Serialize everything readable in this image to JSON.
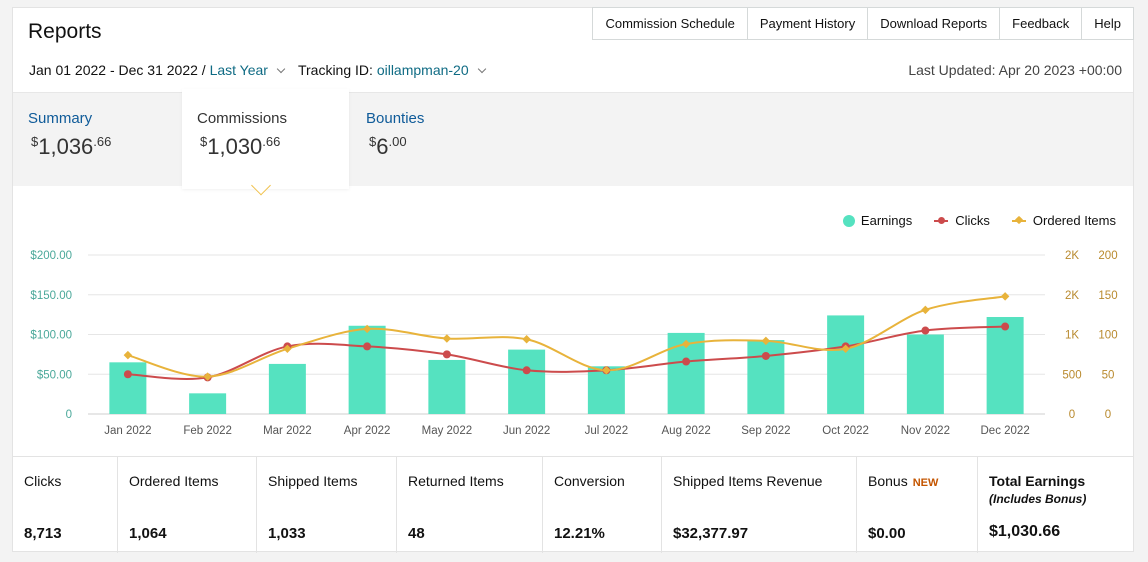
{
  "header": {
    "title": "Reports",
    "nav": [
      "Commission Schedule",
      "Payment History",
      "Download Reports",
      "Feedback",
      "Help"
    ]
  },
  "filters": {
    "date_range": "Jan 01 2022 - Dec 31 2022 /",
    "period": "Last Year",
    "tracking_label": "Tracking ID:",
    "tracking_id": "oillampman-20",
    "last_updated": "Last Updated: Apr 20 2023 +00:00"
  },
  "tabs": {
    "summary": {
      "label": "Summary",
      "cur": "$",
      "main": "1,036",
      "cents": ".66"
    },
    "commissions": {
      "label": "Commissions",
      "cur": "$",
      "main": "1,030",
      "cents": ".66"
    },
    "bounties": {
      "label": "Bounties",
      "cur": "$",
      "main": "6",
      "cents": ".00"
    }
  },
  "legend": {
    "earnings": "Earnings",
    "clicks": "Clicks",
    "ordered": "Ordered Items"
  },
  "colors": {
    "earnings": "#55e2c0",
    "clicks": "#cc4b4c",
    "ordered": "#e8b33b",
    "left_axis": "#4aa89a",
    "right_axis": "#b98a2e",
    "accent_link": "#0f6b84"
  },
  "chart_data": {
    "type": "bar",
    "categories": [
      "Jan 2022",
      "Feb 2022",
      "Mar 2022",
      "Apr 2022",
      "May 2022",
      "Jun 2022",
      "Jul 2022",
      "Aug 2022",
      "Sep 2022",
      "Oct 2022",
      "Nov 2022",
      "Dec 2022"
    ],
    "series": [
      {
        "name": "Earnings",
        "type": "bar",
        "axis": "left",
        "values": [
          65,
          26,
          63,
          111,
          68,
          81,
          60,
          102,
          93,
          124,
          100,
          122
        ]
      },
      {
        "name": "Clicks",
        "type": "line",
        "axis": "right_clicks",
        "values": [
          500,
          460,
          850,
          850,
          750,
          550,
          550,
          660,
          730,
          850,
          1050,
          1100
        ]
      },
      {
        "name": "Ordered Items",
        "type": "line",
        "axis": "right_items",
        "values": [
          74,
          47,
          82,
          107,
          95,
          94,
          55,
          88,
          92,
          82,
          131,
          148
        ]
      }
    ],
    "y_left": {
      "ticks": [
        "0",
        "$50.00",
        "$100.00",
        "$150.00",
        "$200.00"
      ],
      "range": [
        0,
        200
      ]
    },
    "y_right_clicks": {
      "ticks": [
        "0",
        "500",
        "1K",
        "2K",
        "2K"
      ],
      "range": [
        0,
        2000
      ]
    },
    "y_right_items": {
      "ticks": [
        "0",
        "50",
        "100",
        "150",
        "200"
      ],
      "range": [
        0,
        200
      ]
    },
    "grid": true,
    "legend_position": "top-right"
  },
  "stats": [
    {
      "label": "Clicks",
      "value": "8,713"
    },
    {
      "label": "Ordered Items",
      "value": "1,064"
    },
    {
      "label": "Shipped Items",
      "value": "1,033"
    },
    {
      "label": "Returned Items",
      "value": "48"
    },
    {
      "label": "Conversion",
      "value": "12.21%"
    },
    {
      "label": "Shipped Items Revenue",
      "value": "$32,377.97"
    },
    {
      "label": "Bonus",
      "badge": "NEW",
      "value": "$0.00"
    },
    {
      "label": "Total Earnings",
      "sub": "(Includes Bonus)",
      "value": "$1,030.66"
    }
  ]
}
